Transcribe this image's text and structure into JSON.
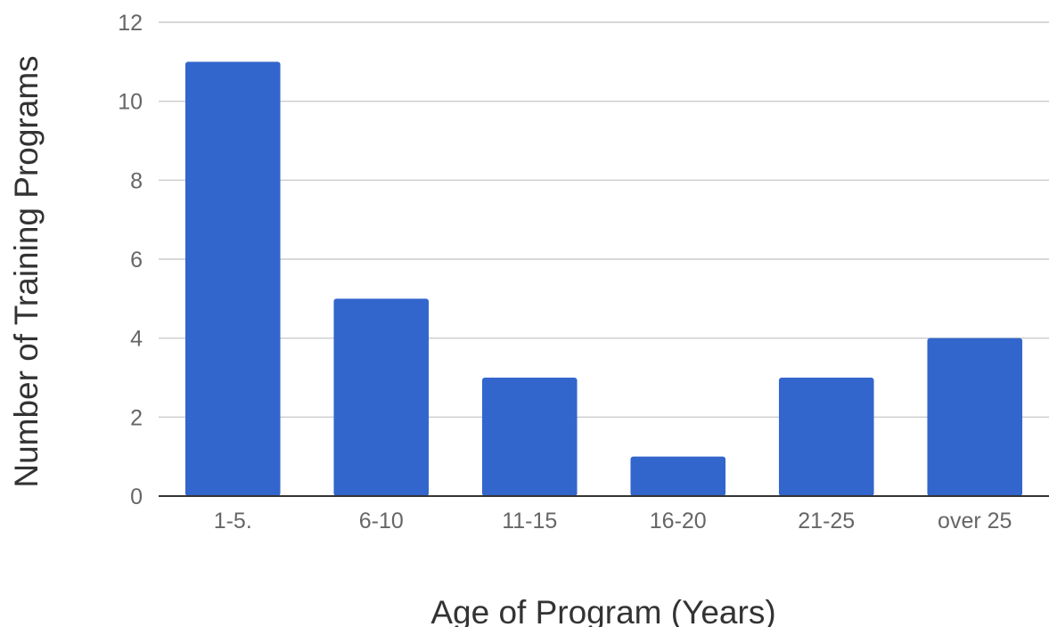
{
  "chart_data": {
    "type": "bar",
    "categories": [
      "1-5.",
      "6-10",
      "11-15",
      "16-20",
      "21-25",
      "over 25"
    ],
    "values": [
      11,
      5,
      3,
      1,
      3,
      4
    ],
    "xlabel": "Age of Program (Years)",
    "ylabel": "Number of Training Programs",
    "ylim": [
      0,
      12
    ],
    "yticks": [
      0,
      2,
      4,
      6,
      8,
      10,
      12
    ],
    "grid": true,
    "bar_color": "#3366cc"
  }
}
